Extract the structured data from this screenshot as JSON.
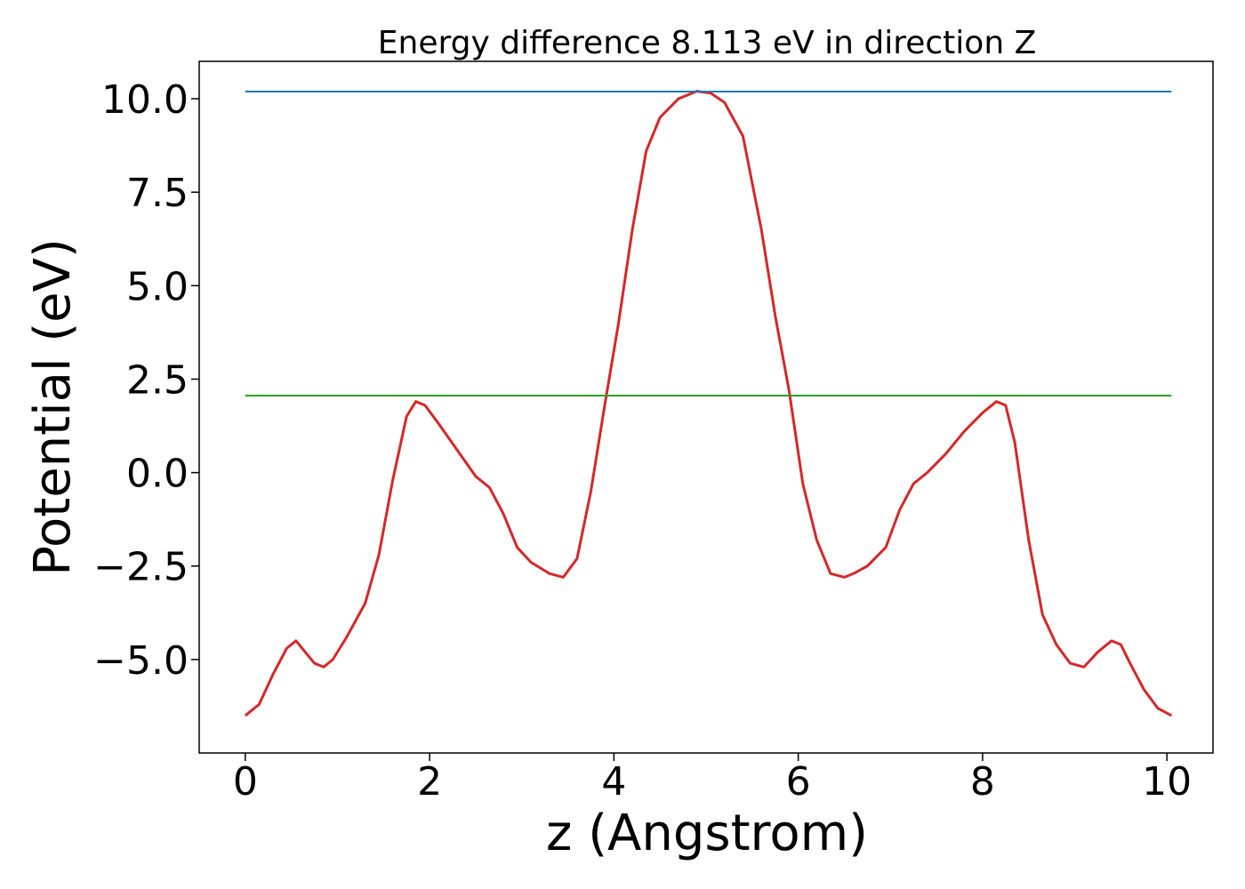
{
  "chart_data": {
    "type": "line",
    "title": "Energy difference 8.113 eV in direction Z",
    "xlabel": "z (Angstrom)",
    "ylabel": "Potential (eV)",
    "xlim": [
      -0.5,
      10.5
    ],
    "ylim": [
      -7.5,
      11.0
    ],
    "x_ticks": [
      0,
      2,
      4,
      6,
      8,
      10
    ],
    "x_tick_labels": [
      "0",
      "2",
      "4",
      "6",
      "8",
      "10"
    ],
    "y_ticks": [
      -5.0,
      -2.5,
      0.0,
      2.5,
      5.0,
      7.5,
      10.0
    ],
    "y_tick_labels": [
      "−5.0",
      "−2.5",
      "0.0",
      "2.5",
      "5.0",
      "7.5",
      "10.0"
    ],
    "grid": false,
    "series": [
      {
        "color": "#d62728",
        "x": [
          0.0,
          0.15,
          0.3,
          0.45,
          0.55,
          0.65,
          0.75,
          0.85,
          0.95,
          1.1,
          1.3,
          1.45,
          1.6,
          1.75,
          1.85,
          1.95,
          2.1,
          2.3,
          2.5,
          2.65,
          2.8,
          2.95,
          3.1,
          3.3,
          3.45,
          3.6,
          3.75,
          3.9,
          4.05,
          4.2,
          4.35,
          4.5,
          4.7,
          4.9,
          5.05,
          5.2,
          5.4,
          5.6,
          5.75,
          5.9,
          6.05,
          6.2,
          6.35,
          6.5,
          6.6,
          6.75,
          6.95,
          7.1,
          7.25,
          7.4,
          7.6,
          7.8,
          8.0,
          8.15,
          8.25,
          8.35,
          8.5,
          8.65,
          8.8,
          8.95,
          9.1,
          9.25,
          9.4,
          9.5,
          9.6,
          9.75,
          9.9,
          10.05
        ],
        "y": [
          -6.5,
          -6.2,
          -5.4,
          -4.7,
          -4.5,
          -4.8,
          -5.1,
          -5.2,
          -5.0,
          -4.4,
          -3.5,
          -2.2,
          -0.2,
          1.5,
          1.9,
          1.8,
          1.3,
          0.6,
          -0.1,
          -0.4,
          -1.1,
          -2.0,
          -2.4,
          -2.7,
          -2.8,
          -2.3,
          -0.5,
          1.8,
          4.0,
          6.5,
          8.6,
          9.5,
          10.0,
          10.2,
          10.15,
          9.9,
          9.0,
          6.5,
          4.2,
          2.2,
          -0.3,
          -1.8,
          -2.7,
          -2.8,
          -2.7,
          -2.5,
          -2.0,
          -1.0,
          -0.3,
          0.0,
          0.5,
          1.1,
          1.6,
          1.9,
          1.8,
          0.8,
          -1.8,
          -3.8,
          -4.6,
          -5.1,
          -5.2,
          -4.8,
          -4.5,
          -4.6,
          -5.1,
          -5.8,
          -6.3,
          -6.5
        ]
      },
      {
        "color": "#1f77b4",
        "x": [
          0.0,
          10.05
        ],
        "y": [
          10.19,
          10.19
        ]
      },
      {
        "color": "#2ca02c",
        "x": [
          0.0,
          10.05
        ],
        "y": [
          2.06,
          2.06
        ]
      }
    ]
  }
}
